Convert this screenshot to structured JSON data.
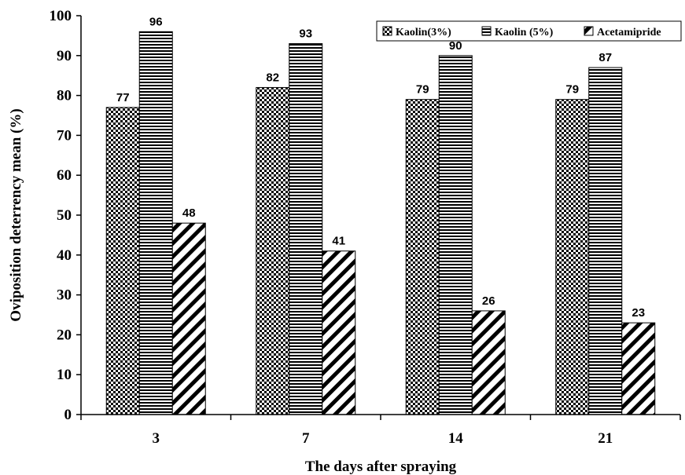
{
  "chart_data": {
    "type": "bar",
    "categories": [
      "3",
      "7",
      "14",
      "21"
    ],
    "series": [
      {
        "name": "Kaolin(3%)",
        "values": [
          77,
          82,
          79,
          79
        ],
        "pattern": "checker"
      },
      {
        "name": "Kaolin (5%)",
        "values": [
          96,
          93,
          90,
          87
        ],
        "pattern": "hstripe"
      },
      {
        "name": "Acetamipride",
        "values": [
          48,
          41,
          26,
          23
        ],
        "pattern": "diag"
      }
    ],
    "data_labels": [
      [
        "77",
        "82",
        "79",
        "79"
      ],
      [
        "96",
        "93",
        "90",
        "87"
      ],
      [
        "48",
        "41",
        "26",
        "23"
      ]
    ],
    "xlabel": "The days after spraying",
    "ylabel": "Oviposition deterrency mean (%)",
    "ylim": [
      0,
      100
    ],
    "yticks": [
      "0",
      "10",
      "20",
      "30",
      "40",
      "50",
      "60",
      "70",
      "80",
      "90",
      "100"
    ],
    "grid": false,
    "legend_position": "top-right"
  }
}
